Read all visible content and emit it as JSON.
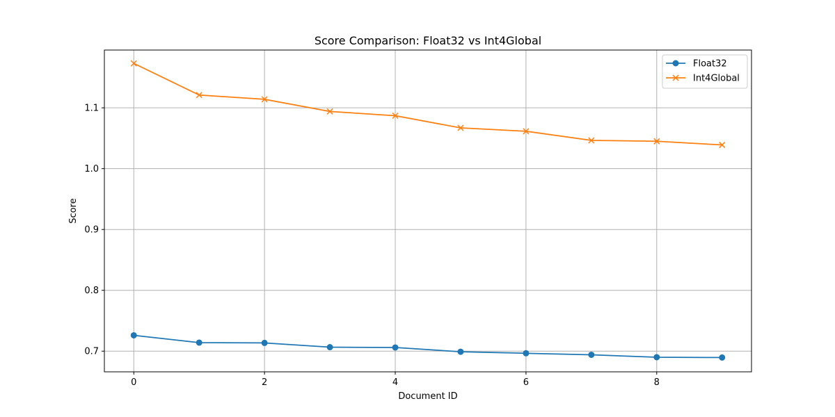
{
  "chart_data": {
    "type": "line",
    "title": "Score Comparison: Float32 vs Int4Global",
    "xlabel": "Document ID",
    "ylabel": "Score",
    "x": [
      0,
      1,
      2,
      3,
      4,
      5,
      6,
      7,
      8,
      9
    ],
    "xlim": [
      -0.45,
      9.45
    ],
    "ylim": [
      0.666,
      1.195
    ],
    "x_ticks": [
      0,
      2,
      4,
      6,
      8
    ],
    "x_tick_labels": [
      "0",
      "2",
      "4",
      "6",
      "8"
    ],
    "y_ticks": [
      0.7,
      0.8,
      0.9,
      1.0,
      1.1
    ],
    "y_tick_labels": [
      "0.7",
      "0.8",
      "0.9",
      "1.0",
      "1.1"
    ],
    "grid": true,
    "legend_position": "top-right",
    "series": [
      {
        "name": "Float32",
        "color": "#1f77b4",
        "marker": "circle",
        "values": [
          0.726,
          0.714,
          0.7135,
          0.7065,
          0.706,
          0.699,
          0.6965,
          0.694,
          0.69,
          0.6895
        ]
      },
      {
        "name": "Int4Global",
        "color": "#ff7f0e",
        "marker": "x",
        "values": [
          1.173,
          1.121,
          1.114,
          1.094,
          1.087,
          1.067,
          1.0615,
          1.0465,
          1.045,
          1.039
        ]
      }
    ]
  }
}
